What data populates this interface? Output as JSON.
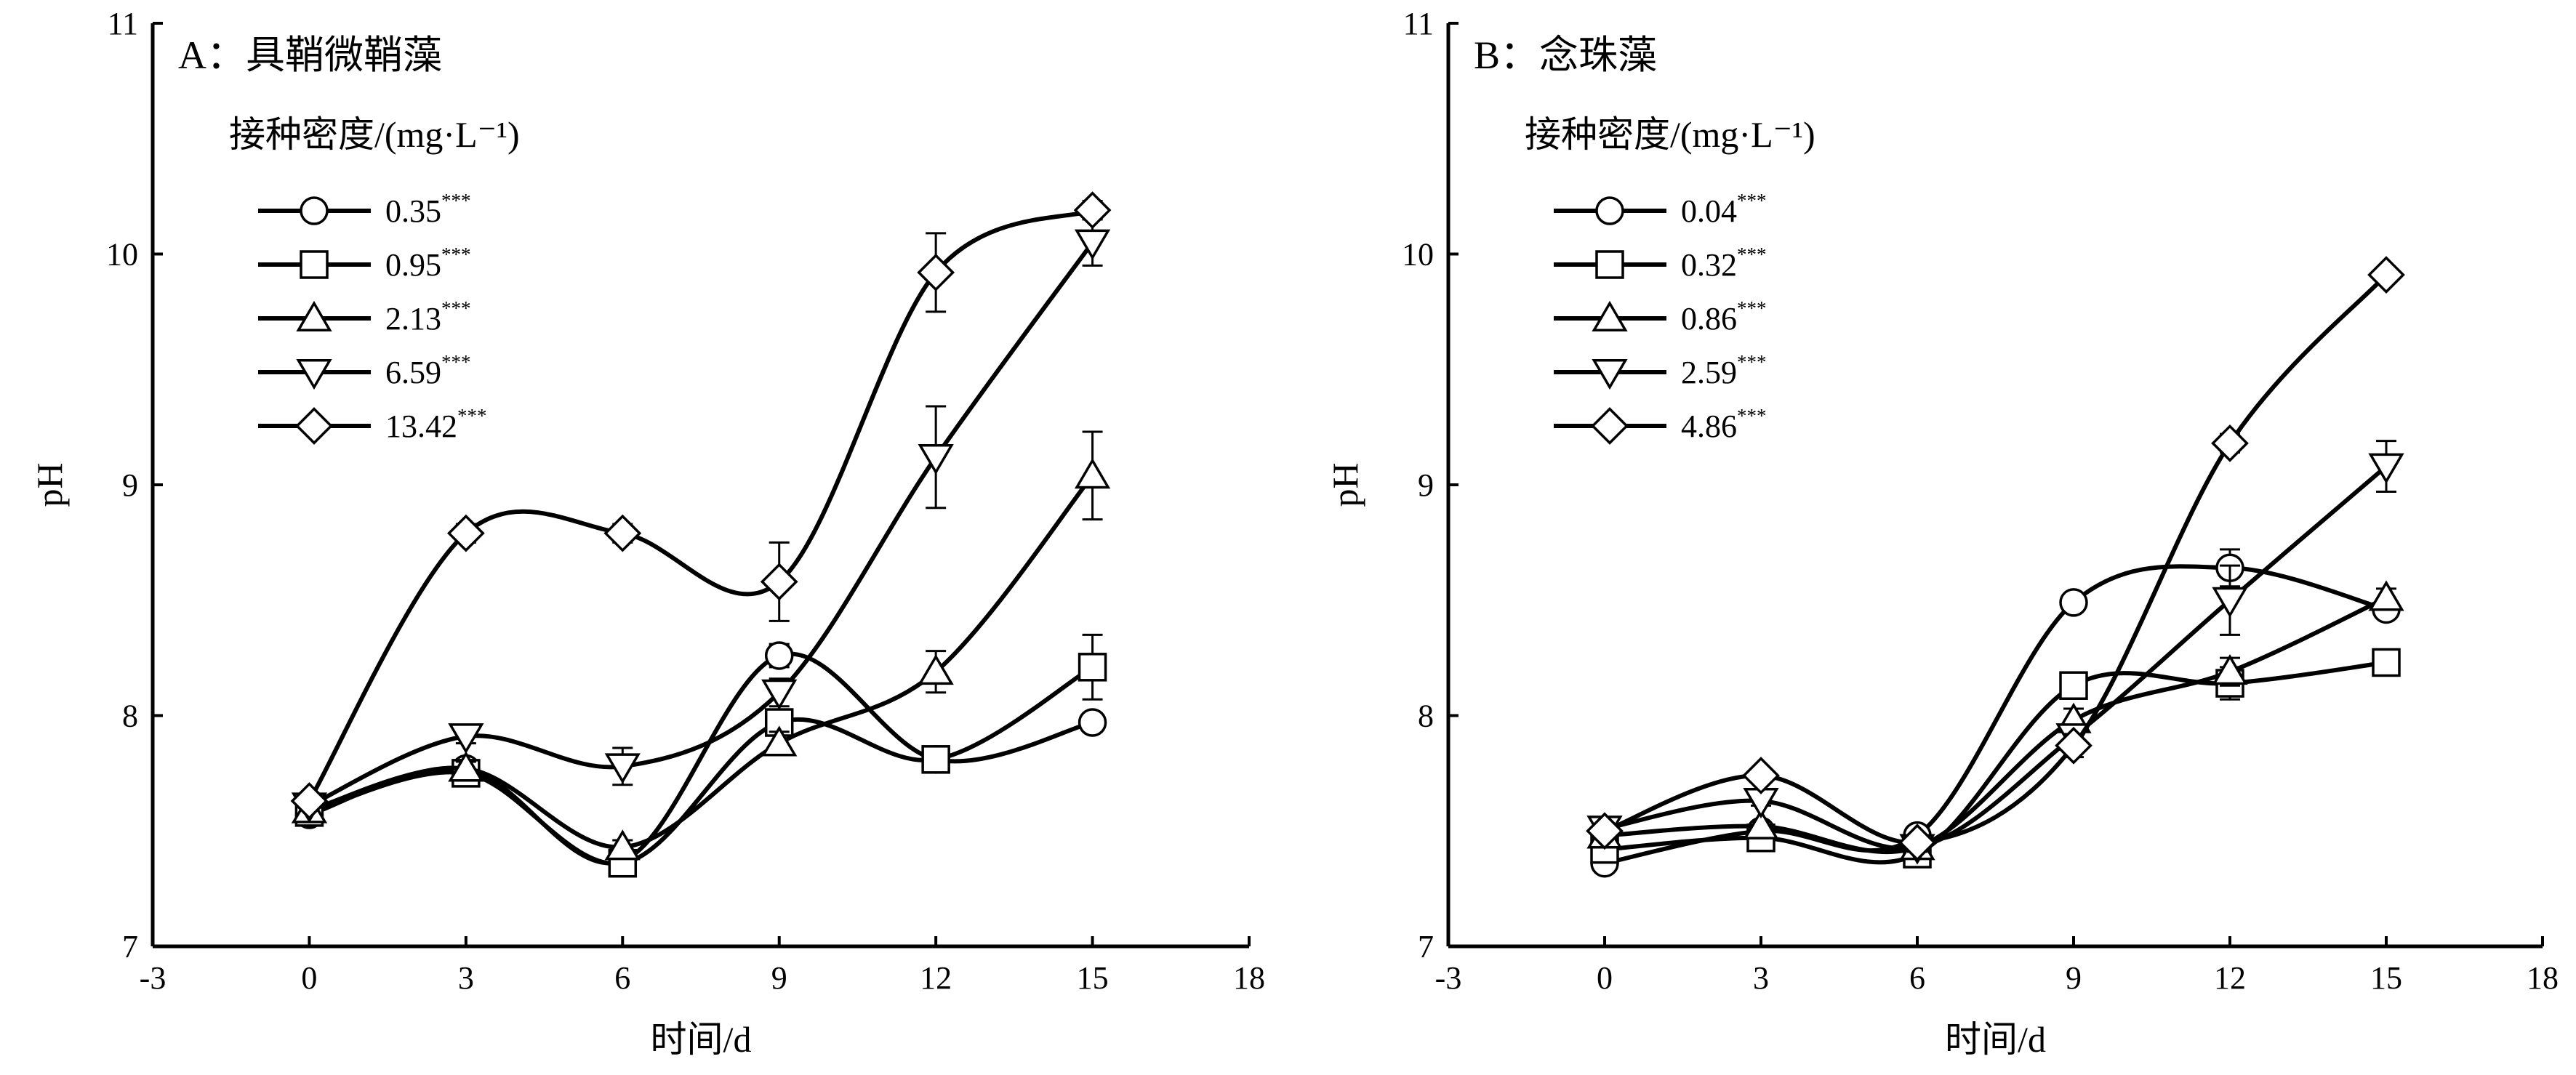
{
  "chart_data": [
    {
      "type": "line",
      "title": "A：具鞘微鞘藻",
      "xlabel": "时间/d",
      "ylabel": "pH",
      "xlim": [
        -3,
        18
      ],
      "ylim": [
        7,
        11
      ],
      "x_ticks": [
        "-3",
        "0",
        "3",
        "6",
        "9",
        "12",
        "15",
        "18"
      ],
      "y_ticks": [
        "7",
        "8",
        "9",
        "10",
        "11"
      ],
      "legend_title": "接种密度/(mg·L⁻¹)",
      "legend_position": "upper-left",
      "x": [
        0,
        3,
        6,
        9,
        12,
        15
      ],
      "series": [
        {
          "name": "0.35",
          "sig": "***",
          "marker": "circle",
          "values": [
            7.57,
            7.77,
            7.37,
            8.26,
            7.81,
            7.97
          ],
          "errors": [
            0.02,
            0.03,
            0.02,
            0.05,
            0.04,
            0.04
          ]
        },
        {
          "name": "0.95",
          "sig": "***",
          "marker": "square",
          "values": [
            7.58,
            7.75,
            7.36,
            7.97,
            7.81,
            8.21
          ],
          "errors": [
            0.02,
            0.03,
            0.03,
            0.05,
            0.03,
            0.14
          ]
        },
        {
          "name": "2.13",
          "sig": "***",
          "marker": "triangle-up",
          "values": [
            7.59,
            7.77,
            7.43,
            7.88,
            8.19,
            9.04
          ],
          "errors": [
            0.02,
            0.03,
            0.03,
            0.05,
            0.09,
            0.19
          ]
        },
        {
          "name": "6.59",
          "sig": "***",
          "marker": "triangle-down",
          "values": [
            7.61,
            7.91,
            7.78,
            8.1,
            9.12,
            10.05
          ],
          "errors": [
            0.02,
            0.03,
            0.08,
            0.06,
            0.22,
            0.1
          ]
        },
        {
          "name": "13.42",
          "sig": "***",
          "marker": "diamond",
          "values": [
            7.63,
            8.79,
            8.79,
            8.58,
            9.92,
            10.19
          ],
          "errors": [
            0.02,
            0.04,
            0.04,
            0.17,
            0.17,
            0.04
          ]
        }
      ]
    },
    {
      "type": "line",
      "title": "B：念珠藻",
      "xlabel": "时间/d",
      "ylabel": "pH",
      "xlim": [
        -3,
        18
      ],
      "ylim": [
        7,
        11
      ],
      "x_ticks": [
        "-3",
        "0",
        "3",
        "6",
        "9",
        "12",
        "15",
        "18"
      ],
      "y_ticks": [
        "7",
        "8",
        "9",
        "10",
        "11"
      ],
      "legend_title": "接种密度/(mg·L⁻¹)",
      "legend_position": "upper-left",
      "x": [
        0,
        3,
        6,
        9,
        12,
        15
      ],
      "series": [
        {
          "name": "0.04",
          "sig": "***",
          "marker": "circle",
          "values": [
            7.36,
            7.5,
            7.48,
            8.49,
            8.64,
            8.46
          ],
          "errors": [
            0.02,
            0.02,
            0.03,
            0.03,
            0.08,
            0.03
          ]
        },
        {
          "name": "0.32",
          "sig": "***",
          "marker": "square",
          "values": [
            7.42,
            7.47,
            7.4,
            8.13,
            8.14,
            8.23
          ],
          "errors": [
            0.02,
            0.02,
            0.02,
            0.03,
            0.07,
            0.03
          ]
        },
        {
          "name": "0.86",
          "sig": "***",
          "marker": "triangle-up",
          "values": [
            7.48,
            7.52,
            7.43,
            7.98,
            8.19,
            8.51
          ],
          "errors": [
            0.02,
            0.02,
            0.02,
            0.05,
            0.06,
            0.04
          ]
        },
        {
          "name": "2.59",
          "sig": "***",
          "marker": "triangle-down",
          "values": [
            7.51,
            7.63,
            7.43,
            7.91,
            8.5,
            9.08
          ],
          "errors": [
            0.02,
            0.02,
            0.02,
            0.05,
            0.15,
            0.11
          ]
        },
        {
          "name": "4.86",
          "sig": "***",
          "marker": "diamond",
          "values": [
            7.5,
            7.74,
            7.45,
            7.87,
            9.18,
            9.91
          ],
          "errors": [
            0.02,
            0.02,
            0.02,
            0.05,
            0.04,
            0.03
          ]
        }
      ]
    }
  ]
}
